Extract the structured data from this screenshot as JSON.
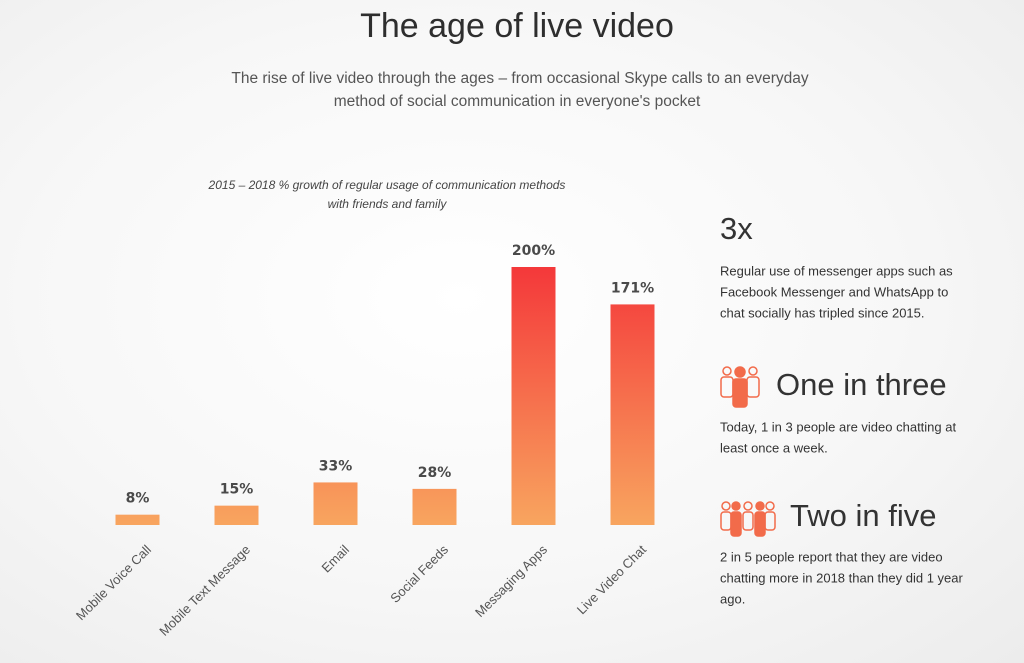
{
  "header": {
    "title": "The age of live video",
    "subtitle": [
      "The rise of live video through the ages – from occasional Skype calls to an everyday",
      "method of social communication in everyone's pocket"
    ]
  },
  "chart_data": {
    "type": "bar",
    "title": [
      "2015 – 2018 % growth of regular usage of communication methods",
      "with friends and family"
    ],
    "categories": [
      "Mobile Voice Call",
      "Mobile Text Message",
      "Email",
      "Social Feeds",
      "Messaging Apps",
      "Live Video Chat"
    ],
    "values": [
      8,
      15,
      33,
      28,
      200,
      171
    ],
    "value_labels": [
      "8%",
      "15%",
      "33%",
      "28%",
      "200%",
      "171%"
    ],
    "ylim": [
      0,
      200
    ],
    "gradient_colors": [
      "#f4383a",
      "#f8a55f"
    ]
  },
  "stats": [
    {
      "headline": "3x",
      "lines": [
        "Regular use of messenger apps such as",
        "Facebook Messenger and WhatsApp to",
        "chat socially has tripled since 2015."
      ]
    },
    {
      "headline": "One in three",
      "lines": [
        "Today, 1 in 3 people are video chatting at",
        "least once a week."
      ]
    },
    {
      "headline": "Two in five",
      "lines": [
        "2 in 5 people report that they are video",
        "chatting more in 2018 than they did 1 year",
        "ago."
      ]
    }
  ]
}
